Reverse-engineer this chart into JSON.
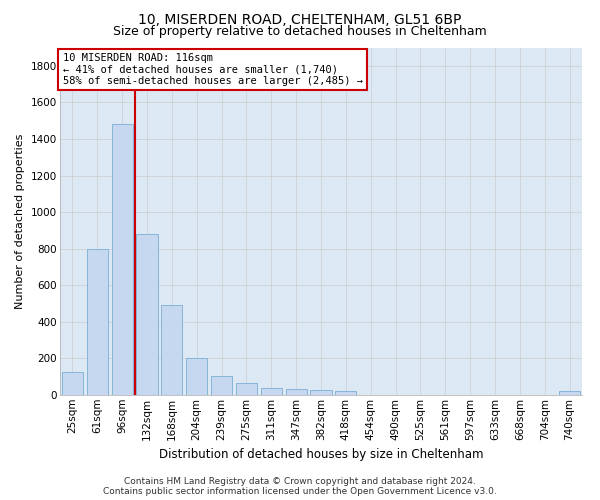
{
  "title1": "10, MISERDEN ROAD, CHELTENHAM, GL51 6BP",
  "title2": "Size of property relative to detached houses in Cheltenham",
  "xlabel": "Distribution of detached houses by size in Cheltenham",
  "ylabel": "Number of detached properties",
  "footer1": "Contains HM Land Registry data © Crown copyright and database right 2024.",
  "footer2": "Contains public sector information licensed under the Open Government Licence v3.0.",
  "categories": [
    "25sqm",
    "61sqm",
    "96sqm",
    "132sqm",
    "168sqm",
    "204sqm",
    "239sqm",
    "275sqm",
    "311sqm",
    "347sqm",
    "382sqm",
    "418sqm",
    "454sqm",
    "490sqm",
    "525sqm",
    "561sqm",
    "597sqm",
    "633sqm",
    "668sqm",
    "704sqm",
    "740sqm"
  ],
  "values": [
    125,
    800,
    1480,
    880,
    490,
    205,
    105,
    65,
    40,
    35,
    30,
    20,
    0,
    0,
    0,
    0,
    0,
    0,
    0,
    0,
    20
  ],
  "bar_color": "#c5d8f0",
  "bar_edge_color": "#7bafd4",
  "vline_pos": 2.5,
  "vline_color": "#cc0000",
  "annotation_text": "10 MISERDEN ROAD: 116sqm\n← 41% of detached houses are smaller (1,740)\n58% of semi-detached houses are larger (2,485) →",
  "annotation_box_facecolor": "#ffffff",
  "annotation_box_edgecolor": "#cc0000",
  "ylim": [
    0,
    1900
  ],
  "yticks": [
    0,
    200,
    400,
    600,
    800,
    1000,
    1200,
    1400,
    1600,
    1800
  ],
  "grid_color": "#cccccc",
  "ax_bg_color": "#dde8f5",
  "fig_bg_color": "#ffffff",
  "title1_fontsize": 10,
  "title2_fontsize": 9,
  "xlabel_fontsize": 8.5,
  "ylabel_fontsize": 8,
  "tick_fontsize": 7.5,
  "footer_fontsize": 6.5,
  "ann_fontsize": 7.5
}
